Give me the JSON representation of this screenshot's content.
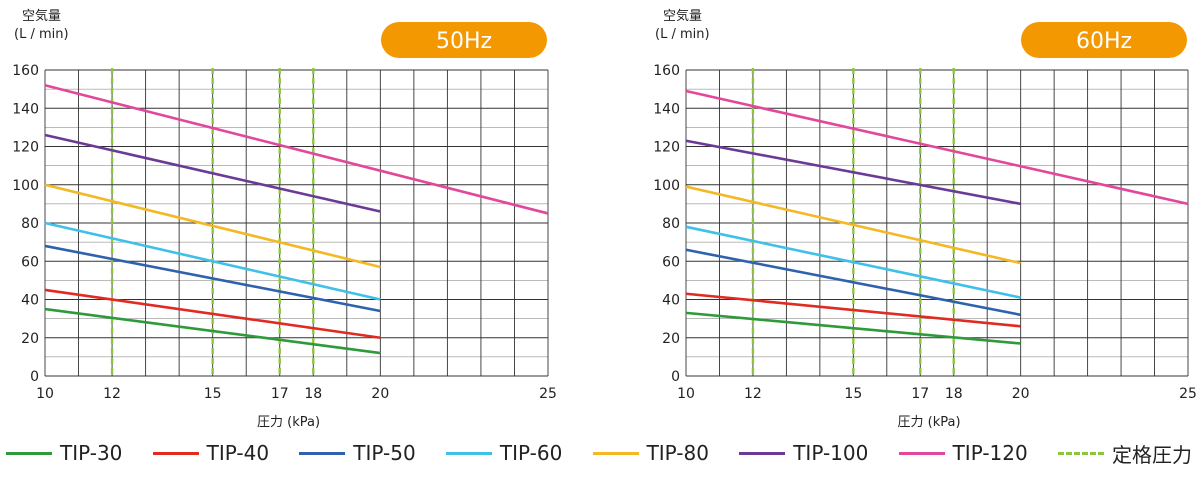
{
  "legend": {
    "items": [
      {
        "label": "TIP-30",
        "color": "#2e9a3a",
        "style": "solid"
      },
      {
        "label": "TIP-40",
        "color": "#e02a22",
        "style": "solid"
      },
      {
        "label": "TIP-50",
        "color": "#2f62ad",
        "style": "solid"
      },
      {
        "label": "TIP-60",
        "color": "#3ec0e8",
        "style": "solid"
      },
      {
        "label": "TIP-80",
        "color": "#f3b824",
        "style": "solid"
      },
      {
        "label": "TIP-100",
        "color": "#6a3a96",
        "style": "solid"
      },
      {
        "label": "TIP-120",
        "color": "#e2479c",
        "style": "solid"
      },
      {
        "label": "定格圧力",
        "color": "#8cc63f",
        "style": "dashed"
      }
    ]
  },
  "colors": {
    "badge": "#f39800",
    "rated": "#8cc63f",
    "grid": "#333333"
  },
  "chart_data": [
    {
      "type": "line",
      "title": "50Hz",
      "ylabel": [
        "空気量",
        "(L / min)"
      ],
      "xlabel": "圧力 (kPa)",
      "xlim": [
        10,
        25
      ],
      "ylim": [
        0,
        160
      ],
      "xticks": [
        10,
        12,
        15,
        17,
        18,
        20,
        25
      ],
      "yticks": [
        0,
        20,
        40,
        60,
        80,
        100,
        120,
        140,
        160
      ],
      "rated_pressures": [
        12,
        15,
        17,
        18
      ],
      "series": [
        {
          "name": "TIP-30",
          "color": "#2e9a3a",
          "x": [
            10,
            20
          ],
          "y": [
            35,
            12
          ]
        },
        {
          "name": "TIP-40",
          "color": "#e02a22",
          "x": [
            10,
            20
          ],
          "y": [
            45,
            20
          ]
        },
        {
          "name": "TIP-50",
          "color": "#2f62ad",
          "x": [
            10,
            20
          ],
          "y": [
            68,
            34
          ]
        },
        {
          "name": "TIP-60",
          "color": "#3ec0e8",
          "x": [
            10,
            20
          ],
          "y": [
            80,
            40
          ]
        },
        {
          "name": "TIP-80",
          "color": "#f3b824",
          "x": [
            10,
            20
          ],
          "y": [
            100,
            57
          ]
        },
        {
          "name": "TIP-100",
          "color": "#6a3a96",
          "x": [
            10,
            20
          ],
          "y": [
            126,
            86
          ]
        },
        {
          "name": "TIP-120",
          "color": "#e2479c",
          "x": [
            10,
            25
          ],
          "y": [
            152,
            85
          ]
        }
      ]
    },
    {
      "type": "line",
      "title": "60Hz",
      "ylabel": [
        "空気量",
        "(L / min)"
      ],
      "xlabel": "圧力 (kPa)",
      "xlim": [
        10,
        25
      ],
      "ylim": [
        0,
        160
      ],
      "xticks": [
        10,
        12,
        15,
        17,
        18,
        20,
        25
      ],
      "yticks": [
        0,
        20,
        40,
        60,
        80,
        100,
        120,
        140,
        160
      ],
      "rated_pressures": [
        12,
        15,
        17,
        18
      ],
      "series": [
        {
          "name": "TIP-30",
          "color": "#2e9a3a",
          "x": [
            10,
            20
          ],
          "y": [
            33,
            17
          ]
        },
        {
          "name": "TIP-40",
          "color": "#e02a22",
          "x": [
            10,
            20
          ],
          "y": [
            43,
            26
          ]
        },
        {
          "name": "TIP-50",
          "color": "#2f62ad",
          "x": [
            10,
            20
          ],
          "y": [
            66,
            32
          ]
        },
        {
          "name": "TIP-60",
          "color": "#3ec0e8",
          "x": [
            10,
            20
          ],
          "y": [
            78,
            41
          ]
        },
        {
          "name": "TIP-80",
          "color": "#f3b824",
          "x": [
            10,
            20
          ],
          "y": [
            99,
            59
          ]
        },
        {
          "name": "TIP-100",
          "color": "#6a3a96",
          "x": [
            10,
            20
          ],
          "y": [
            123,
            90
          ]
        },
        {
          "name": "TIP-120",
          "color": "#e2479c",
          "x": [
            10,
            25
          ],
          "y": [
            149,
            90
          ]
        }
      ]
    }
  ]
}
